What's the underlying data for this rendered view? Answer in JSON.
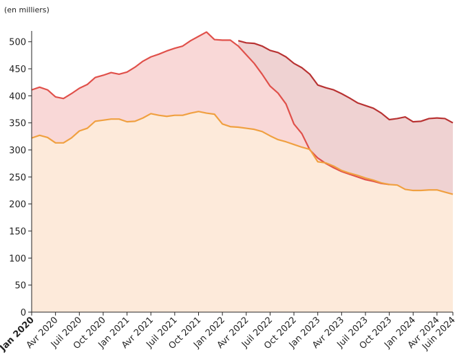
{
  "chart_data": {
    "type": "area",
    "unit_note": "(en milliers)",
    "categories": [
      "Jan 2020",
      null,
      null,
      "Avr 2020",
      null,
      null,
      "Juil 2020",
      null,
      null,
      "Oct 2020",
      null,
      null,
      "Jan 2021",
      null,
      null,
      "Avr 2021",
      null,
      null,
      "Juil 2021",
      null,
      null,
      "Oct 2021",
      null,
      null,
      "Jan 2022",
      null,
      null,
      "Avr 2022",
      null,
      null,
      "Juil 2022",
      null,
      null,
      "Oct 2022",
      null,
      null,
      "Jan 2023",
      null,
      null,
      "Avr 2023",
      null,
      null,
      "Juil 2023",
      null,
      null,
      "Oct 2023",
      null,
      null,
      "Jan 2024",
      null,
      null,
      "Avr 2024",
      null,
      "Juin 2024"
    ],
    "ylim": [
      0,
      520
    ],
    "yticks": [
      0,
      50,
      100,
      150,
      200,
      250,
      300,
      350,
      400,
      450,
      500
    ],
    "series": [
      {
        "color": "#b83232",
        "fill": "#efd2d2",
        "values": [
          null,
          null,
          null,
          null,
          null,
          null,
          null,
          null,
          null,
          null,
          null,
          null,
          null,
          null,
          null,
          null,
          null,
          null,
          null,
          null,
          null,
          null,
          null,
          null,
          null,
          null,
          502,
          498,
          497,
          492,
          484,
          480,
          472,
          460,
          452,
          440,
          420,
          415,
          411,
          404,
          396,
          387,
          382,
          377,
          368,
          356,
          358,
          361,
          352,
          353,
          358,
          359,
          358,
          350
        ]
      },
      {
        "color": "#e0504a",
        "fill": "#f9d8d7",
        "values": [
          411,
          416,
          411,
          398,
          395,
          404,
          414,
          421,
          434,
          438,
          443,
          440,
          444,
          453,
          464,
          472,
          477,
          483,
          488,
          492,
          502,
          510,
          518,
          504,
          503,
          503,
          492,
          476,
          460,
          440,
          418,
          405,
          385,
          348,
          330,
          300,
          285,
          275,
          267,
          260,
          255,
          250,
          245,
          242,
          238,
          236,
          null,
          null,
          null,
          null,
          null,
          null,
          null,
          null
        ]
      },
      {
        "color": "#f0a040",
        "fill": "#fdeada",
        "values": [
          322,
          327,
          323,
          313,
          313,
          322,
          335,
          340,
          353,
          355,
          357,
          357,
          352,
          353,
          359,
          367,
          364,
          362,
          364,
          364,
          368,
          371,
          368,
          366,
          348,
          343,
          342,
          340,
          338,
          334,
          326,
          319,
          315,
          310,
          305,
          301,
          278,
          276,
          270,
          262,
          257,
          253,
          248,
          244,
          239,
          236,
          235,
          227,
          225,
          225,
          226,
          226,
          222,
          218
        ]
      }
    ]
  }
}
